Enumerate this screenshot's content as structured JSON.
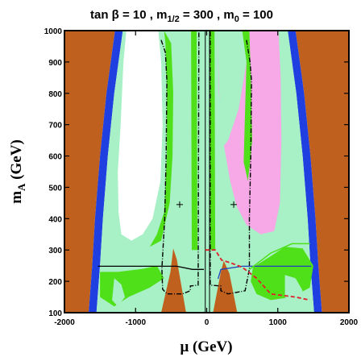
{
  "chart_data": {
    "type": "area",
    "title": {
      "prefix": "tan β = 10 ,  m",
      "sub1": "1/2",
      "mid": " = 300 ,  m",
      "sub2": "0",
      "suffix": " = 100"
    },
    "xlabel": "μ (GeV)",
    "ylabel": {
      "main": "m",
      "sub": "A",
      "unit": " (GeV)"
    },
    "xlim": [
      -2000,
      2000
    ],
    "ylim": [
      100,
      1000
    ],
    "xticks": [
      -2000,
      -1000,
      0,
      1000,
      2000
    ],
    "yticks": [
      100,
      200,
      300,
      400,
      500,
      600,
      700,
      800,
      900,
      1000
    ],
    "grid": false,
    "colors": {
      "excluded_brown": "#c0601e",
      "blue_band": "#1f3fe0",
      "light_green": "#a8f0c6",
      "green": "#4fe01a",
      "pink": "#f7a8e6",
      "white": "#ffffff",
      "red_dashed": "#e0202a",
      "dash_dot": "#000000",
      "blue_line": "#2040c0",
      "dark_line": "#000000"
    },
    "markers": [
      {
        "x": -380,
        "y": 445
      },
      {
        "x": 380,
        "y": 445
      }
    ],
    "regions": {
      "brown_edge_x_at": [
        {
          "y": 1000,
          "x": 1250
        },
        {
          "y": 800,
          "x": 1370
        },
        {
          "y": 600,
          "x": 1460
        },
        {
          "y": 400,
          "x": 1530
        },
        {
          "y": 250,
          "x": 1570
        },
        {
          "y": 100,
          "x": 1620
        }
      ],
      "blue_band_width_x": 110,
      "central_wedge_right": [
        {
          "x": 90,
          "y": 100
        },
        {
          "x": 200,
          "y": 230
        },
        {
          "x": 240,
          "y": 265
        },
        {
          "x": 320,
          "y": 225
        },
        {
          "x": 430,
          "y": 100
        }
      ],
      "central_wedge_left": [
        {
          "x": -640,
          "y": 100
        },
        {
          "x": -510,
          "y": 230
        },
        {
          "x": -470,
          "y": 305
        },
        {
          "x": -420,
          "y": 270
        },
        {
          "x": -290,
          "y": 100
        }
      ],
      "dashdot_left": [
        {
          "x": -640,
          "y": 970
        },
        {
          "x": -580,
          "y": 930
        },
        {
          "x": -560,
          "y": 840
        },
        {
          "x": -570,
          "y": 600
        },
        {
          "x": -590,
          "y": 400
        },
        {
          "x": -630,
          "y": 240
        },
        {
          "x": -620,
          "y": 175
        },
        {
          "x": -560,
          "y": 160
        },
        {
          "x": -340,
          "y": 160
        },
        {
          "x": -230,
          "y": 170
        },
        {
          "x": -230,
          "y": 185
        },
        {
          "x": -120,
          "y": 188
        },
        {
          "x": -110,
          "y": 1000
        }
      ],
      "dashdot_right": [
        {
          "x": 560,
          "y": 970
        },
        {
          "x": 610,
          "y": 900
        },
        {
          "x": 630,
          "y": 840
        },
        {
          "x": 620,
          "y": 600
        },
        {
          "x": 600,
          "y": 400
        },
        {
          "x": 600,
          "y": 240
        },
        {
          "x": 540,
          "y": 170
        },
        {
          "x": 300,
          "y": 160
        },
        {
          "x": 200,
          "y": 170
        },
        {
          "x": 200,
          "y": 185
        },
        {
          "x": 50,
          "y": 188
        },
        {
          "x": 50,
          "y": 1000
        }
      ],
      "red_dashed_curve": [
        {
          "x": -20,
          "y": 300
        },
        {
          "x": 120,
          "y": 300
        },
        {
          "x": 210,
          "y": 268
        },
        {
          "x": 350,
          "y": 258
        },
        {
          "x": 500,
          "y": 245
        },
        {
          "x": 700,
          "y": 210
        },
        {
          "x": 800,
          "y": 185
        },
        {
          "x": 900,
          "y": 160
        },
        {
          "x": 1250,
          "y": 150
        },
        {
          "x": 1450,
          "y": 140
        }
      ],
      "horizontal_line_y": 248,
      "horizontal_line_x": [
        -1530,
        1470
      ]
    }
  }
}
